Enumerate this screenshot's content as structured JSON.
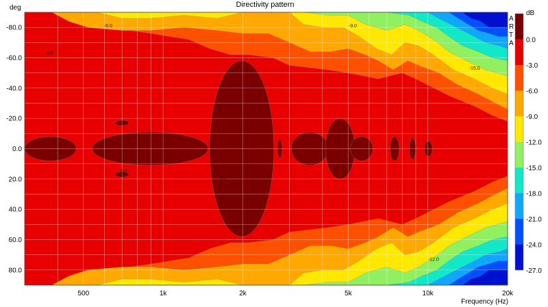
{
  "chart_data": {
    "type": "heatmap",
    "title": "Directivity pattern",
    "ylabel": "deg",
    "xlabel": "Frequency (Hz)",
    "x_scale": "log",
    "xlim": [
      300,
      20000
    ],
    "ylim": [
      -90,
      90
    ],
    "x_ticks": [
      {
        "value": 500,
        "label": "500"
      },
      {
        "value": 1000,
        "label": "1k"
      },
      {
        "value": 2000,
        "label": "2k"
      },
      {
        "value": 5000,
        "label": "5k"
      },
      {
        "value": 10000,
        "label": "10k"
      },
      {
        "value": 20000,
        "label": "20k"
      }
    ],
    "y_ticks": [
      {
        "value": -80,
        "label": "-80.0"
      },
      {
        "value": -60,
        "label": "-60.0"
      },
      {
        "value": -40,
        "label": "-40.0"
      },
      {
        "value": -20,
        "label": "-20.0"
      },
      {
        "value": 0,
        "label": "0.0"
      },
      {
        "value": 20,
        "label": "20.0"
      },
      {
        "value": 40,
        "label": "40.0"
      },
      {
        "value": 60,
        "label": "60.0"
      },
      {
        "value": 80,
        "label": "80.0"
      }
    ],
    "grid": true,
    "watermark": "ARTA",
    "colorbar": {
      "unit": "dB",
      "levels": [
        {
          "label": "",
          "color": "#7a0000"
        },
        {
          "label": "0.0",
          "color": "#e80000"
        },
        {
          "label": "-3.0",
          "color": "#ff5000"
        },
        {
          "label": "-6.0",
          "color": "#ffa800"
        },
        {
          "label": "-9.0",
          "color": "#ffe800"
        },
        {
          "label": "-12.0",
          "color": "#90f060"
        },
        {
          "label": "-15.0",
          "color": "#10e8c8"
        },
        {
          "label": "-18.0",
          "color": "#10a8ff"
        },
        {
          "label": "-21.0",
          "color": "#0050ff"
        },
        {
          "label": "-24.0",
          "color": "#0010d0"
        },
        {
          "label": "-27.0",
          "color": ""
        }
      ]
    },
    "contour_labels": [
      {
        "text": "-3.0",
        "freq": 370,
        "deg": -62
      },
      {
        "text": "-6.0",
        "freq": 620,
        "deg": -80
      },
      {
        "text": "-9.0",
        "freq": 5200,
        "deg": -80
      },
      {
        "text": "-15.0",
        "freq": 15000,
        "deg": -52
      },
      {
        "text": "-12.0",
        "freq": 10500,
        "deg": 74
      },
      {
        "text": "0.0",
        "freq": 710,
        "deg": 16
      },
      {
        "text": "0.0",
        "freq": 1680,
        "deg": 20
      }
    ]
  }
}
